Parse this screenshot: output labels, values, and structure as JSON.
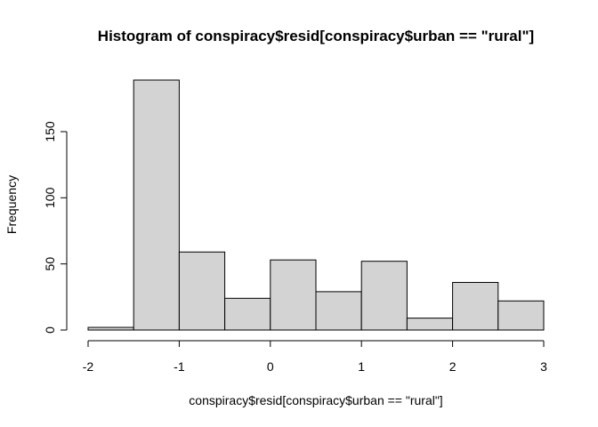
{
  "chart_data": {
    "type": "histogram",
    "title": "Histogram of conspiracy$resid[conspiracy$urban == \"rural\"]",
    "x_label": "conspiracy$resid[conspiracy$urban == \"rural\"]",
    "y_label": "Frequency",
    "bins": [
      -2,
      -1.5,
      -1,
      -0.5,
      0,
      0.5,
      1,
      1.5,
      2,
      2.5,
      3
    ],
    "values": [
      2,
      189,
      59,
      24,
      53,
      29,
      52,
      9,
      36,
      22
    ],
    "color": "#d3d3d3",
    "xlim": [
      -2,
      3
    ],
    "xticks": [
      -2,
      -1,
      0,
      1,
      2,
      3
    ],
    "ylim": [
      0,
      189
    ],
    "yticks": [
      0,
      50,
      100,
      150
    ]
  }
}
